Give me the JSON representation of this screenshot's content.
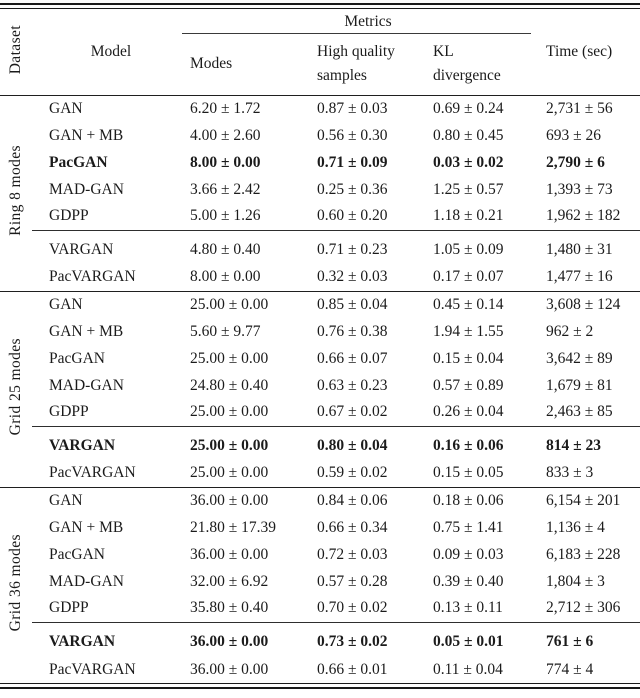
{
  "colors": {
    "text": "#1b1b1b",
    "rules": "#1a1a1a",
    "background": "#ffffff"
  },
  "table": {
    "header": {
      "dataset": "Dataset",
      "model": "Model",
      "metrics": "Metrics",
      "modes": "Modes",
      "high_quality": "High quality samples",
      "kl": "KL divergence",
      "time": "Time (sec)"
    },
    "sections": [
      {
        "dataset": "Ring 8 modes",
        "rows": [
          {
            "model": "GAN",
            "modes": "6.20 ± 1.72",
            "hq": "0.87 ± 0.03",
            "kl": "0.69 ± 0.24",
            "time": "2,731 ± 56",
            "bold": false,
            "divider_before": false
          },
          {
            "model": "GAN + MB",
            "modes": "4.00 ± 2.60",
            "hq": "0.56 ± 0.30",
            "kl": "0.80 ± 0.45",
            "time": "693 ± 26",
            "bold": false,
            "divider_before": false
          },
          {
            "model": "PacGAN",
            "modes": "8.00 ± 0.00",
            "hq": "0.71 ± 0.09",
            "kl": "0.03 ± 0.02",
            "time": "2,790 ± 6",
            "bold": true,
            "divider_before": false
          },
          {
            "model": "MAD-GAN",
            "modes": "3.66 ± 2.42",
            "hq": "0.25 ± 0.36",
            "kl": "1.25 ± 0.57",
            "time": "1,393 ± 73",
            "bold": false,
            "divider_before": false
          },
          {
            "model": "GDPP",
            "modes": "5.00 ± 1.26",
            "hq": "0.60 ± 0.20",
            "kl": "1.18 ± 0.21",
            "time": "1,962 ± 182",
            "bold": false,
            "divider_before": false
          },
          {
            "model": "VARGAN",
            "modes": "4.80 ± 0.40",
            "hq": "0.71 ± 0.23",
            "kl": "1.05 ± 0.09",
            "time": "1,480 ± 31",
            "bold": false,
            "divider_before": true
          },
          {
            "model": "PacVARGAN",
            "modes": "8.00 ± 0.00",
            "hq": "0.32 ± 0.03",
            "kl": "0.17 ± 0.07",
            "time": "1,477 ± 16",
            "bold": false,
            "divider_before": false
          }
        ]
      },
      {
        "dataset": "Grid 25 modes",
        "rows": [
          {
            "model": "GAN",
            "modes": "25.00 ± 0.00",
            "hq": "0.85 ± 0.04",
            "kl": "0.45 ± 0.14",
            "time": "3,608 ± 124",
            "bold": false,
            "divider_before": false
          },
          {
            "model": "GAN + MB",
            "modes": "5.60 ± 9.77",
            "hq": "0.76 ± 0.38",
            "kl": "1.94 ± 1.55",
            "time": "962 ± 2",
            "bold": false,
            "divider_before": false
          },
          {
            "model": "PacGAN",
            "modes": "25.00 ± 0.00",
            "hq": "0.66 ± 0.07",
            "kl": "0.15 ± 0.04",
            "time": "3,642 ± 89",
            "bold": false,
            "divider_before": false
          },
          {
            "model": "MAD-GAN",
            "modes": "24.80 ± 0.40",
            "hq": "0.63 ± 0.23",
            "kl": "0.57 ± 0.89",
            "time": "1,679 ± 81",
            "bold": false,
            "divider_before": false
          },
          {
            "model": "GDPP",
            "modes": "25.00 ± 0.00",
            "hq": "0.67 ± 0.02",
            "kl": "0.26 ± 0.04",
            "time": "2,463 ± 85",
            "bold": false,
            "divider_before": false
          },
          {
            "model": "VARGAN",
            "modes": "25.00 ± 0.00",
            "hq": "0.80 ± 0.04",
            "kl": "0.16 ± 0.06",
            "time": "814 ± 23",
            "bold": true,
            "divider_before": true
          },
          {
            "model": "PacVARGAN",
            "modes": "25.00 ± 0.00",
            "hq": "0.59 ± 0.02",
            "kl": "0.15 ± 0.05",
            "time": "833 ± 3",
            "bold": false,
            "divider_before": false
          }
        ]
      },
      {
        "dataset": "Grid 36 modes",
        "rows": [
          {
            "model": "GAN",
            "modes": "36.00 ± 0.00",
            "hq": "0.84 ± 0.06",
            "kl": "0.18 ± 0.06",
            "time": "6,154 ± 201",
            "bold": false,
            "divider_before": false
          },
          {
            "model": "GAN + MB",
            "modes": "21.80 ± 17.39",
            "hq": "0.66 ± 0.34",
            "kl": "0.75 ± 1.41",
            "time": "1,136 ± 4",
            "bold": false,
            "divider_before": false
          },
          {
            "model": "PacGAN",
            "modes": "36.00 ± 0.00",
            "hq": "0.72 ± 0.03",
            "kl": "0.09 ± 0.03",
            "time": "6,183 ± 228",
            "bold": false,
            "divider_before": false
          },
          {
            "model": "MAD-GAN",
            "modes": "32.00 ± 6.92",
            "hq": "0.57 ± 0.28",
            "kl": "0.39 ± 0.40",
            "time": "1,804 ± 3",
            "bold": false,
            "divider_before": false
          },
          {
            "model": "GDPP",
            "modes": "35.80 ± 0.40",
            "hq": "0.70 ± 0.02",
            "kl": "0.13 ± 0.11",
            "time": "2,712 ± 306",
            "bold": false,
            "divider_before": false
          },
          {
            "model": "VARGAN",
            "modes": "36.00 ± 0.00",
            "hq": "0.73 ± 0.02",
            "kl": "0.05 ± 0.01",
            "time": "761 ± 6",
            "bold": true,
            "divider_before": true
          },
          {
            "model": "PacVARGAN",
            "modes": "36.00 ± 0.00",
            "hq": "0.66 ± 0.01",
            "kl": "0.11 ± 0.04",
            "time": "774 ± 4",
            "bold": false,
            "divider_before": false
          }
        ]
      }
    ]
  }
}
